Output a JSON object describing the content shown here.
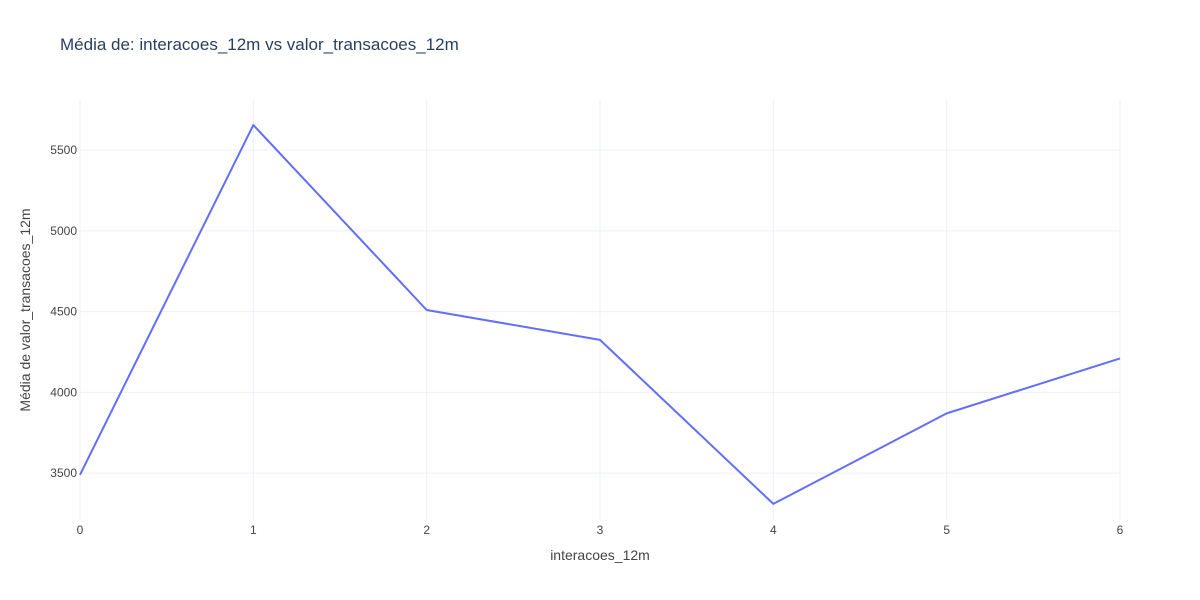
{
  "chart_data": {
    "type": "line",
    "title": "Média de: interacoes_12m vs valor_transacoes_12m",
    "xlabel": "interacoes_12m",
    "ylabel": "Média de valor_transacoes_12m",
    "x": [
      0,
      1,
      2,
      3,
      4,
      5,
      6
    ],
    "series": [
      {
        "values": [
          3490,
          5655,
          4510,
          4325,
          3310,
          3870,
          4210
        ]
      }
    ],
    "xlim": [
      0,
      6
    ],
    "ylim": [
      3210,
      5810
    ],
    "xticks": [
      0,
      1,
      2,
      3,
      4,
      5,
      6
    ],
    "yticks": [
      3500,
      4000,
      4500,
      5000,
      5500
    ],
    "grid": true,
    "legend": "none",
    "colors": {
      "line": "#636efa",
      "grid": "#ebeff5",
      "text": "#444444",
      "title": "#2a3f5f"
    }
  }
}
